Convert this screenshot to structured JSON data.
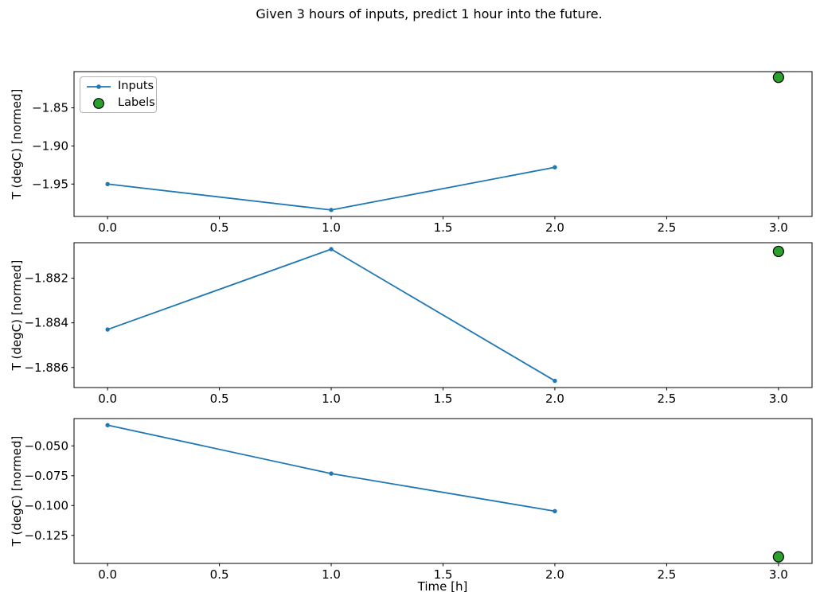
{
  "title": "Given 3 hours of inputs, predict 1 hour into the future.",
  "xlabel": "Time [h]",
  "ylabel": "T (degC) [normed]",
  "legend": {
    "position": "upper-left",
    "items": [
      {
        "label": "Inputs",
        "marker": "line-with-dot",
        "color": "#1f77b4"
      },
      {
        "label": "Labels",
        "marker": "filled-circle",
        "color": "#2ca02c"
      }
    ]
  },
  "colors": {
    "inputs_line": "#1f77b4",
    "labels_fill": "#2ca02c",
    "labels_edge": "#000000",
    "axis": "#000000"
  },
  "chart_data": [
    {
      "type": "line",
      "subplot": 1,
      "ylabel": "T (degC) [normed]",
      "xlabel": "",
      "grid": false,
      "xlim": [
        -0.15,
        3.15
      ],
      "ylim": [
        -1.9925,
        -1.8025
      ],
      "xticks": {
        "values": [
          0,
          0.5,
          1,
          1.5,
          2,
          2.5,
          3
        ],
        "labels": [
          "0.0",
          "0.5",
          "1.0",
          "1.5",
          "2.0",
          "2.5",
          "3.0"
        ]
      },
      "yticks": {
        "values": [
          -1.85,
          -1.9,
          -1.95
        ],
        "labels": [
          "−1.85",
          "−1.90",
          "−1.95"
        ]
      },
      "series": [
        {
          "name": "Inputs",
          "style": "line+marker",
          "color": "#1f77b4",
          "x": [
            0,
            1,
            2
          ],
          "y": [
            -1.95,
            -1.984,
            -1.928
          ]
        },
        {
          "name": "Labels",
          "style": "scatter",
          "color": "#2ca02c",
          "x": [
            3
          ],
          "y": [
            -1.81
          ]
        }
      ],
      "has_legend": true
    },
    {
      "type": "line",
      "subplot": 2,
      "ylabel": "T (degC) [normed]",
      "xlabel": "",
      "grid": false,
      "xlim": [
        -0.15,
        3.15
      ],
      "ylim": [
        -1.8869,
        -1.88041
      ],
      "xticks": {
        "values": [
          0,
          0.5,
          1,
          1.5,
          2,
          2.5,
          3
        ],
        "labels": [
          "0.0",
          "0.5",
          "1.0",
          "1.5",
          "2.0",
          "2.5",
          "3.0"
        ]
      },
      "yticks": {
        "values": [
          -1.882,
          -1.884,
          -1.886
        ],
        "labels": [
          "−1.882",
          "−1.884",
          "−1.886"
        ]
      },
      "series": [
        {
          "name": "Inputs",
          "style": "line+marker",
          "color": "#1f77b4",
          "x": [
            0,
            1,
            2
          ],
          "y": [
            -1.8843,
            -1.8807,
            -1.8866
          ]
        },
        {
          "name": "Labels",
          "style": "scatter",
          "color": "#2ca02c",
          "x": [
            3
          ],
          "y": [
            -1.8808
          ]
        }
      ],
      "has_legend": false
    },
    {
      "type": "line",
      "subplot": 3,
      "ylabel": "T (degC) [normed]",
      "xlabel": "Time [h]",
      "grid": false,
      "xlim": [
        -0.15,
        3.15
      ],
      "ylim": [
        -0.1485,
        -0.0271
      ],
      "xticks": {
        "values": [
          0,
          0.5,
          1,
          1.5,
          2,
          2.5,
          3
        ],
        "labels": [
          "0.0",
          "0.5",
          "1.0",
          "1.5",
          "2.0",
          "2.5",
          "3.0"
        ]
      },
      "yticks": {
        "values": [
          -0.05,
          -0.075,
          -0.1,
          -0.125
        ],
        "labels": [
          "−0.050",
          "−0.075",
          "−0.100",
          "−0.125"
        ]
      },
      "series": [
        {
          "name": "Inputs",
          "style": "line+marker",
          "color": "#1f77b4",
          "x": [
            0,
            1,
            2
          ],
          "y": [
            -0.0326,
            -0.0732,
            -0.1047
          ]
        },
        {
          "name": "Labels",
          "style": "scatter",
          "color": "#2ca02c",
          "x": [
            3
          ],
          "y": [
            -0.143
          ]
        }
      ],
      "has_legend": false
    }
  ]
}
